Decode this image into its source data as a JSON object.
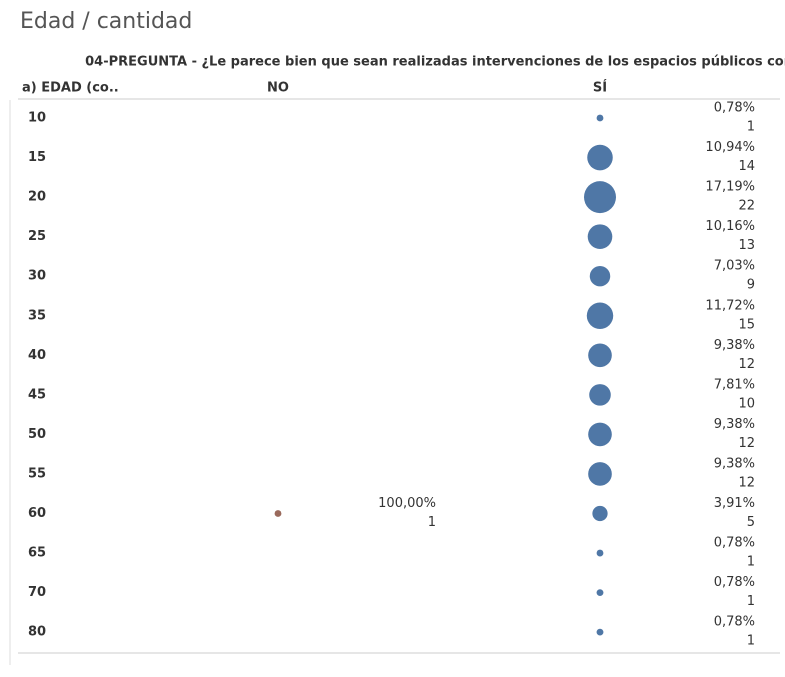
{
  "chart_data": {
    "type": "bubble",
    "title": "Edad / cantidad",
    "column_header": "04-PREGUNTA - ¿Le parece bien que sean realizadas intervenciones de los espacios públicos con..",
    "row_header": "a) EDAD (co..",
    "categories": [
      "10",
      "15",
      "20",
      "25",
      "30",
      "35",
      "40",
      "45",
      "50",
      "55",
      "60",
      "65",
      "70",
      "80"
    ],
    "series": [
      {
        "name": "NO",
        "color": "#9a6a5c",
        "values": [
          null,
          null,
          null,
          null,
          null,
          null,
          null,
          null,
          null,
          null,
          1,
          null,
          null,
          null
        ],
        "percents": [
          null,
          null,
          null,
          null,
          null,
          null,
          null,
          null,
          null,
          null,
          100,
          null,
          null,
          null
        ],
        "percent_labels": [
          null,
          null,
          null,
          null,
          null,
          null,
          null,
          null,
          null,
          null,
          "100,00%",
          null,
          null,
          null
        ]
      },
      {
        "name": "SÍ",
        "color": "#4f77a6",
        "values": [
          1,
          14,
          22,
          13,
          9,
          15,
          12,
          10,
          12,
          12,
          5,
          1,
          1,
          1
        ],
        "percents": [
          0.78,
          10.94,
          17.19,
          10.16,
          7.03,
          11.72,
          9.38,
          7.81,
          9.38,
          9.38,
          3.91,
          0.78,
          0.78,
          0.78
        ],
        "percent_labels": [
          "0,78%",
          "10,94%",
          "17,19%",
          "10,16%",
          "7,03%",
          "11,72%",
          "9,38%",
          "7,81%",
          "9,38%",
          "9,38%",
          "3,91%",
          "0,78%",
          "0,78%",
          "0,78%"
        ]
      }
    ]
  }
}
